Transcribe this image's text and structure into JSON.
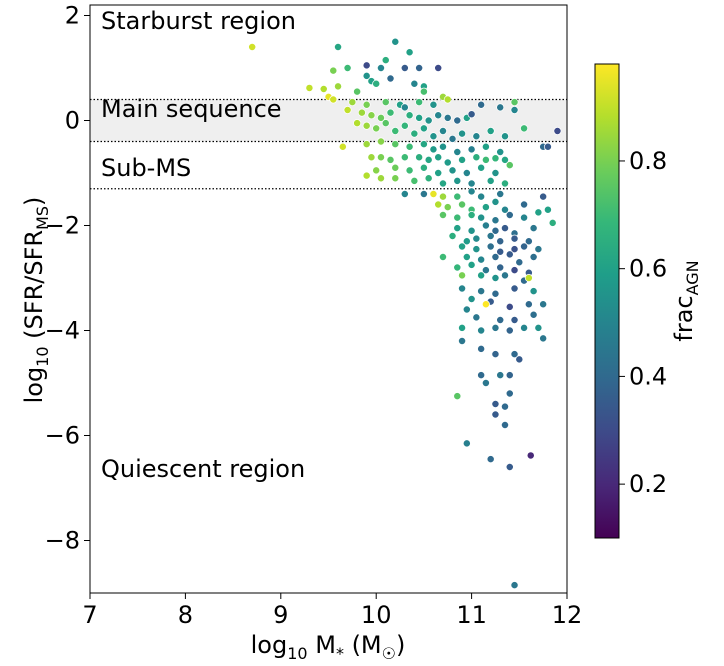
{
  "chart_data": {
    "type": "scatter",
    "xlabel": "log₁₀ M* (M☉)",
    "ylabel": "log₁₀ (SFR/SFR_MS)",
    "xlim": [
      7,
      12
    ],
    "ylim": [
      -9,
      2.2
    ],
    "x_ticks": [
      "7",
      "8",
      "9",
      "10",
      "11",
      "12"
    ],
    "y_ticks": [
      "−8",
      "−6",
      "−4",
      "−2",
      "0",
      "2"
    ],
    "grid": false,
    "colorbar": {
      "label": "frac_AGN",
      "colormap": "viridis",
      "range": [
        0.1,
        0.98
      ],
      "ticks": [
        "0.2",
        "0.4",
        "0.6",
        "0.8"
      ]
    },
    "regions": {
      "main_sequence_band": [
        -0.4,
        0.4
      ],
      "sub_ms_threshold": -1.3
    },
    "annotations": [
      "Starburst region",
      "Main sequence",
      "Sub-MS",
      "Quiescent region"
    ],
    "points": [
      [
        8.7,
        1.4,
        0.92
      ],
      [
        9.6,
        1.4,
        0.62
      ],
      [
        10.2,
        1.5,
        0.55
      ],
      [
        10.35,
        1.3,
        0.6
      ],
      [
        10.1,
        1.15,
        0.65
      ],
      [
        9.9,
        1.05,
        0.3
      ],
      [
        10.05,
        1.0,
        0.5
      ],
      [
        10.3,
        1.0,
        0.35
      ],
      [
        10.45,
        1.0,
        0.38
      ],
      [
        10.65,
        1.0,
        0.3
      ],
      [
        9.7,
        1.0,
        0.7
      ],
      [
        9.55,
        0.95,
        0.8
      ],
      [
        9.9,
        0.85,
        0.55
      ],
      [
        9.95,
        0.75,
        0.6
      ],
      [
        10.0,
        0.7,
        0.65
      ],
      [
        10.15,
        0.8,
        0.4
      ],
      [
        10.4,
        0.7,
        0.5
      ],
      [
        10.5,
        0.65,
        0.6
      ],
      [
        9.3,
        0.62,
        0.9
      ],
      [
        9.45,
        0.6,
        0.88
      ],
      [
        9.6,
        0.65,
        0.85
      ],
      [
        9.8,
        0.55,
        0.75
      ],
      [
        9.5,
        0.45,
        0.95
      ],
      [
        9.55,
        0.4,
        0.92
      ],
      [
        9.75,
        0.35,
        0.85
      ],
      [
        9.9,
        0.3,
        0.8
      ],
      [
        10.1,
        0.35,
        0.75
      ],
      [
        10.25,
        0.3,
        0.6
      ],
      [
        10.3,
        0.25,
        0.5
      ],
      [
        10.45,
        0.35,
        0.7
      ],
      [
        10.6,
        0.3,
        0.55
      ],
      [
        10.7,
        0.45,
        0.85
      ],
      [
        10.75,
        0.4,
        0.88
      ],
      [
        11.1,
        0.3,
        0.4
      ],
      [
        11.3,
        0.25,
        0.45
      ],
      [
        11.45,
        0.2,
        0.5
      ],
      [
        9.7,
        0.2,
        0.9
      ],
      [
        9.85,
        0.15,
        0.85
      ],
      [
        9.95,
        0.1,
        0.82
      ],
      [
        10.05,
        0.05,
        0.78
      ],
      [
        10.15,
        0.15,
        0.7
      ],
      [
        10.35,
        0.1,
        0.65
      ],
      [
        10.45,
        0.05,
        0.6
      ],
      [
        10.55,
        0.0,
        0.55
      ],
      [
        10.65,
        0.1,
        0.5
      ],
      [
        10.75,
        0.05,
        0.45
      ],
      [
        10.85,
        0.0,
        0.4
      ],
      [
        10.95,
        0.05,
        0.6
      ],
      [
        11.0,
        0.12,
        0.35
      ],
      [
        9.8,
        -0.05,
        0.88
      ],
      [
        9.9,
        -0.1,
        0.85
      ],
      [
        10.0,
        -0.15,
        0.8
      ],
      [
        10.1,
        -0.05,
        0.75
      ],
      [
        10.2,
        -0.2,
        0.7
      ],
      [
        10.3,
        -0.1,
        0.68
      ],
      [
        10.4,
        -0.25,
        0.65
      ],
      [
        10.5,
        -0.15,
        0.6
      ],
      [
        10.6,
        -0.3,
        0.55
      ],
      [
        10.7,
        -0.2,
        0.5
      ],
      [
        10.8,
        -0.35,
        0.45
      ],
      [
        10.9,
        -0.25,
        0.55
      ],
      [
        11.05,
        -0.3,
        0.5
      ],
      [
        11.2,
        -0.2,
        0.6
      ],
      [
        11.35,
        -0.3,
        0.55
      ],
      [
        11.55,
        -0.15,
        0.7
      ],
      [
        9.65,
        -0.5,
        0.92
      ],
      [
        9.9,
        -0.45,
        0.85
      ],
      [
        10.05,
        -0.4,
        0.82
      ],
      [
        10.2,
        -0.45,
        0.75
      ],
      [
        10.35,
        -0.5,
        0.7
      ],
      [
        10.5,
        -0.45,
        0.62
      ],
      [
        10.6,
        -0.55,
        0.58
      ],
      [
        10.7,
        -0.5,
        0.55
      ],
      [
        10.85,
        -0.6,
        0.5
      ],
      [
        11.0,
        -0.55,
        0.48
      ],
      [
        11.15,
        -0.5,
        0.6
      ],
      [
        11.3,
        -0.6,
        0.55
      ],
      [
        11.75,
        -0.5,
        0.4
      ],
      [
        9.95,
        -0.7,
        0.85
      ],
      [
        10.05,
        -0.7,
        0.8
      ],
      [
        10.15,
        -0.75,
        0.75
      ],
      [
        10.3,
        -0.7,
        0.7
      ],
      [
        10.45,
        -0.7,
        0.65
      ],
      [
        10.55,
        -0.75,
        0.62
      ],
      [
        10.65,
        -0.7,
        0.6
      ],
      [
        10.75,
        -0.8,
        0.58
      ],
      [
        10.9,
        -0.75,
        0.6
      ],
      [
        11.05,
        -0.7,
        0.65
      ],
      [
        11.15,
        -0.75,
        0.7
      ],
      [
        11.25,
        -0.72,
        0.68
      ],
      [
        11.35,
        -0.75,
        0.62
      ],
      [
        10.0,
        -0.95,
        0.82
      ],
      [
        10.2,
        -0.9,
        0.78
      ],
      [
        10.35,
        -0.95,
        0.7
      ],
      [
        10.5,
        -0.9,
        0.65
      ],
      [
        10.65,
        -1.0,
        0.6
      ],
      [
        10.8,
        -0.95,
        0.55
      ],
      [
        10.95,
        -1.0,
        0.5
      ],
      [
        11.1,
        -0.9,
        0.6
      ],
      [
        11.25,
        -1.0,
        0.55
      ],
      [
        11.4,
        -0.85,
        0.75
      ],
      [
        9.9,
        -1.05,
        0.88
      ],
      [
        10.05,
        -1.1,
        0.85
      ],
      [
        10.2,
        -1.1,
        0.8
      ],
      [
        10.4,
        -1.15,
        0.72
      ],
      [
        10.55,
        -1.1,
        0.66
      ],
      [
        10.7,
        -1.2,
        0.62
      ],
      [
        10.85,
        -1.15,
        0.56
      ],
      [
        11.0,
        -1.2,
        0.5
      ],
      [
        11.2,
        -1.15,
        0.6
      ],
      [
        11.35,
        -1.2,
        0.65
      ],
      [
        10.6,
        -1.4,
        0.95
      ],
      [
        10.7,
        -1.45,
        0.85
      ],
      [
        10.85,
        -1.45,
        0.7
      ],
      [
        10.3,
        -1.4,
        0.5
      ],
      [
        10.5,
        -1.4,
        0.45
      ],
      [
        11.0,
        -1.35,
        0.5
      ],
      [
        11.1,
        -1.45,
        0.5
      ],
      [
        11.3,
        -1.4,
        0.45
      ],
      [
        11.75,
        -1.45,
        0.35
      ],
      [
        10.65,
        -1.6,
        0.88
      ],
      [
        10.75,
        -1.65,
        0.8
      ],
      [
        10.9,
        -1.6,
        0.75
      ],
      [
        11.0,
        -1.7,
        0.7
      ],
      [
        11.15,
        -1.65,
        0.6
      ],
      [
        11.25,
        -1.55,
        0.55
      ],
      [
        11.35,
        -1.7,
        0.5
      ],
      [
        11.55,
        -1.6,
        0.4
      ],
      [
        10.7,
        -1.8,
        0.75
      ],
      [
        10.85,
        -1.85,
        0.7
      ],
      [
        11.0,
        -1.8,
        0.65
      ],
      [
        11.1,
        -1.85,
        0.55
      ],
      [
        11.25,
        -1.9,
        0.45
      ],
      [
        11.4,
        -1.8,
        0.4
      ],
      [
        11.55,
        -1.85,
        0.5
      ],
      [
        11.7,
        -1.75,
        0.6
      ],
      [
        11.85,
        -1.95,
        0.65
      ],
      [
        11.8,
        -1.7,
        0.6
      ],
      [
        10.85,
        -2.05,
        0.6
      ],
      [
        11.0,
        -2.1,
        0.55
      ],
      [
        11.15,
        -2.0,
        0.48
      ],
      [
        11.25,
        -2.1,
        0.4
      ],
      [
        11.35,
        -2.05,
        0.35
      ],
      [
        11.45,
        -2.15,
        0.42
      ],
      [
        11.65,
        -2.05,
        0.45
      ],
      [
        10.8,
        -2.2,
        0.65
      ],
      [
        10.95,
        -2.3,
        0.58
      ],
      [
        11.05,
        -2.25,
        0.52
      ],
      [
        11.2,
        -2.2,
        0.45
      ],
      [
        11.3,
        -2.3,
        0.38
      ],
      [
        11.45,
        -2.25,
        0.35
      ],
      [
        11.6,
        -2.3,
        0.4
      ],
      [
        10.9,
        -2.4,
        0.6
      ],
      [
        11.05,
        -2.45,
        0.55
      ],
      [
        11.2,
        -2.4,
        0.42
      ],
      [
        11.3,
        -2.5,
        0.35
      ],
      [
        11.45,
        -2.45,
        0.32
      ],
      [
        11.55,
        -2.4,
        0.38
      ],
      [
        11.7,
        -2.45,
        0.45
      ],
      [
        10.7,
        -2.6,
        0.7
      ],
      [
        10.95,
        -2.6,
        0.6
      ],
      [
        11.1,
        -2.65,
        0.5
      ],
      [
        11.25,
        -2.6,
        0.4
      ],
      [
        11.4,
        -2.55,
        0.35
      ],
      [
        11.5,
        -2.7,
        0.4
      ],
      [
        11.65,
        -2.6,
        0.42
      ],
      [
        10.85,
        -2.8,
        0.68
      ],
      [
        11.0,
        -2.75,
        0.6
      ],
      [
        11.15,
        -2.85,
        0.45
      ],
      [
        11.3,
        -2.8,
        0.38
      ],
      [
        11.45,
        -2.85,
        0.3
      ],
      [
        11.6,
        -2.9,
        0.35
      ],
      [
        10.9,
        -2.95,
        0.8
      ],
      [
        11.1,
        -2.95,
        0.6
      ],
      [
        11.25,
        -3.0,
        0.55
      ],
      [
        11.35,
        -2.95,
        0.45
      ],
      [
        11.55,
        -3.05,
        0.4
      ],
      [
        11.6,
        -3.0,
        0.9
      ],
      [
        10.9,
        -3.2,
        0.5
      ],
      [
        11.1,
        -3.25,
        0.45
      ],
      [
        11.25,
        -3.3,
        0.4
      ],
      [
        11.45,
        -3.2,
        0.35
      ],
      [
        11.65,
        -3.25,
        0.55
      ],
      [
        11.0,
        -3.4,
        0.55
      ],
      [
        11.2,
        -3.45,
        0.35
      ],
      [
        11.15,
        -3.5,
        0.98
      ],
      [
        11.4,
        -3.55,
        0.3
      ],
      [
        11.6,
        -3.5,
        0.4
      ],
      [
        11.75,
        -3.5,
        0.45
      ],
      [
        10.95,
        -3.6,
        0.5
      ],
      [
        11.05,
        -3.75,
        0.45
      ],
      [
        11.3,
        -3.8,
        0.4
      ],
      [
        11.45,
        -3.8,
        0.35
      ],
      [
        11.65,
        -3.7,
        0.42
      ],
      [
        10.9,
        -3.95,
        0.6
      ],
      [
        11.1,
        -4.0,
        0.5
      ],
      [
        11.25,
        -3.95,
        0.45
      ],
      [
        11.4,
        -4.0,
        0.38
      ],
      [
        11.55,
        -3.95,
        0.5
      ],
      [
        11.7,
        -3.95,
        0.55
      ],
      [
        11.75,
        -4.15,
        0.45
      ],
      [
        10.9,
        -4.2,
        0.45
      ],
      [
        11.1,
        -4.35,
        0.4
      ],
      [
        11.25,
        -4.45,
        0.38
      ],
      [
        11.45,
        -4.45,
        0.4
      ],
      [
        11.5,
        -4.55,
        0.35
      ],
      [
        11.1,
        -4.85,
        0.4
      ],
      [
        11.3,
        -4.85,
        0.45
      ],
      [
        11.4,
        -4.85,
        0.38
      ],
      [
        10.85,
        -5.25,
        0.75
      ],
      [
        11.15,
        -5.0,
        0.45
      ],
      [
        11.4,
        -5.2,
        0.4
      ],
      [
        11.25,
        -5.4,
        0.35
      ],
      [
        11.35,
        -5.45,
        0.4
      ],
      [
        11.25,
        -5.6,
        0.35
      ],
      [
        11.35,
        -5.8,
        0.4
      ],
      [
        10.95,
        -6.15,
        0.48
      ],
      [
        11.2,
        -6.45,
        0.4
      ],
      [
        11.4,
        -6.6,
        0.35
      ],
      [
        11.62,
        -6.38,
        0.2
      ],
      [
        11.45,
        -8.85,
        0.45
      ],
      [
        11.9,
        -0.2,
        0.3
      ],
      [
        11.8,
        -0.5,
        0.35
      ],
      [
        10.5,
        0.55,
        0.72
      ],
      [
        11.45,
        0.35,
        0.75
      ]
    ]
  }
}
